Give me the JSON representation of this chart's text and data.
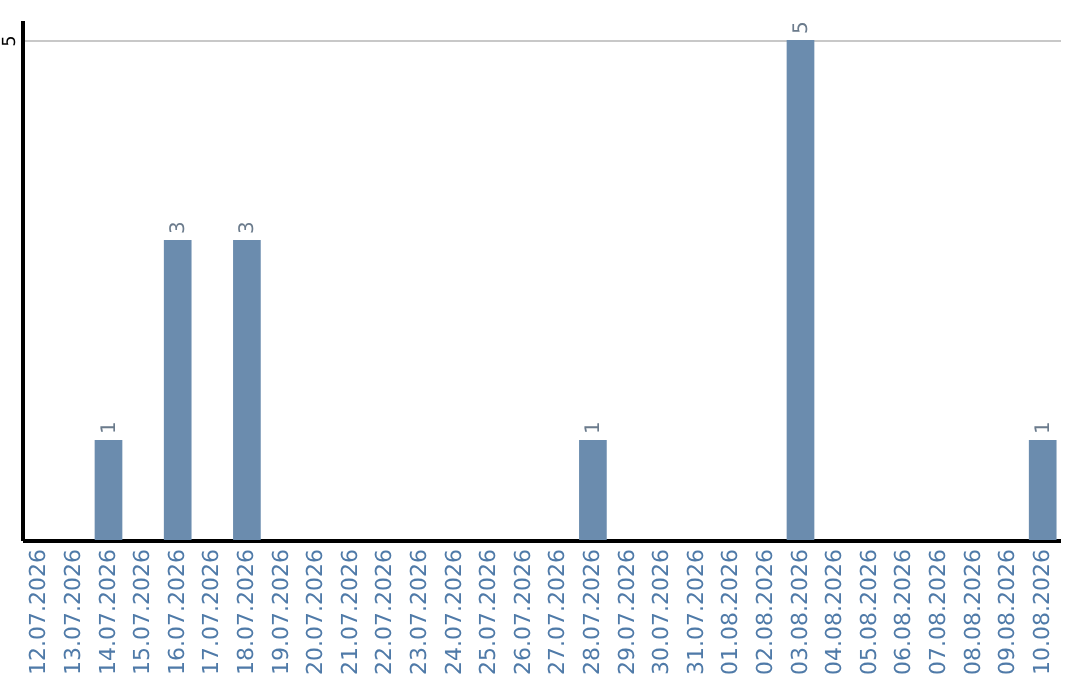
{
  "chart_data": {
    "type": "bar",
    "categories": [
      "12.07.2026",
      "13.07.2026",
      "14.07.2026",
      "15.07.2026",
      "16.07.2026",
      "17.07.2026",
      "18.07.2026",
      "19.07.2026",
      "20.07.2026",
      "21.07.2026",
      "22.07.2026",
      "23.07.2026",
      "24.07.2026",
      "25.07.2026",
      "26.07.2026",
      "27.07.2026",
      "28.07.2026",
      "29.07.2026",
      "30.07.2026",
      "31.07.2026",
      "01.08.2026",
      "02.08.2026",
      "03.08.2026",
      "04.08.2026",
      "05.08.2026",
      "06.08.2026",
      "07.08.2026",
      "08.08.2026",
      "09.08.2026",
      "10.08.2026"
    ],
    "values": [
      0,
      0,
      1,
      0,
      3,
      0,
      3,
      0,
      0,
      0,
      0,
      0,
      0,
      0,
      0,
      0,
      1,
      0,
      0,
      0,
      0,
      0,
      5,
      0,
      0,
      0,
      0,
      0,
      0,
      1
    ],
    "value_labels": [
      null,
      null,
      "1",
      null,
      "3",
      null,
      "3",
      null,
      null,
      null,
      null,
      null,
      null,
      null,
      null,
      null,
      "1",
      null,
      null,
      null,
      null,
      null,
      "5",
      null,
      null,
      null,
      null,
      null,
      null,
      "1"
    ],
    "color": "#6b8cae",
    "ylim": [
      0,
      5.2
    ],
    "yticks": [
      5
    ],
    "grid": "y"
  }
}
